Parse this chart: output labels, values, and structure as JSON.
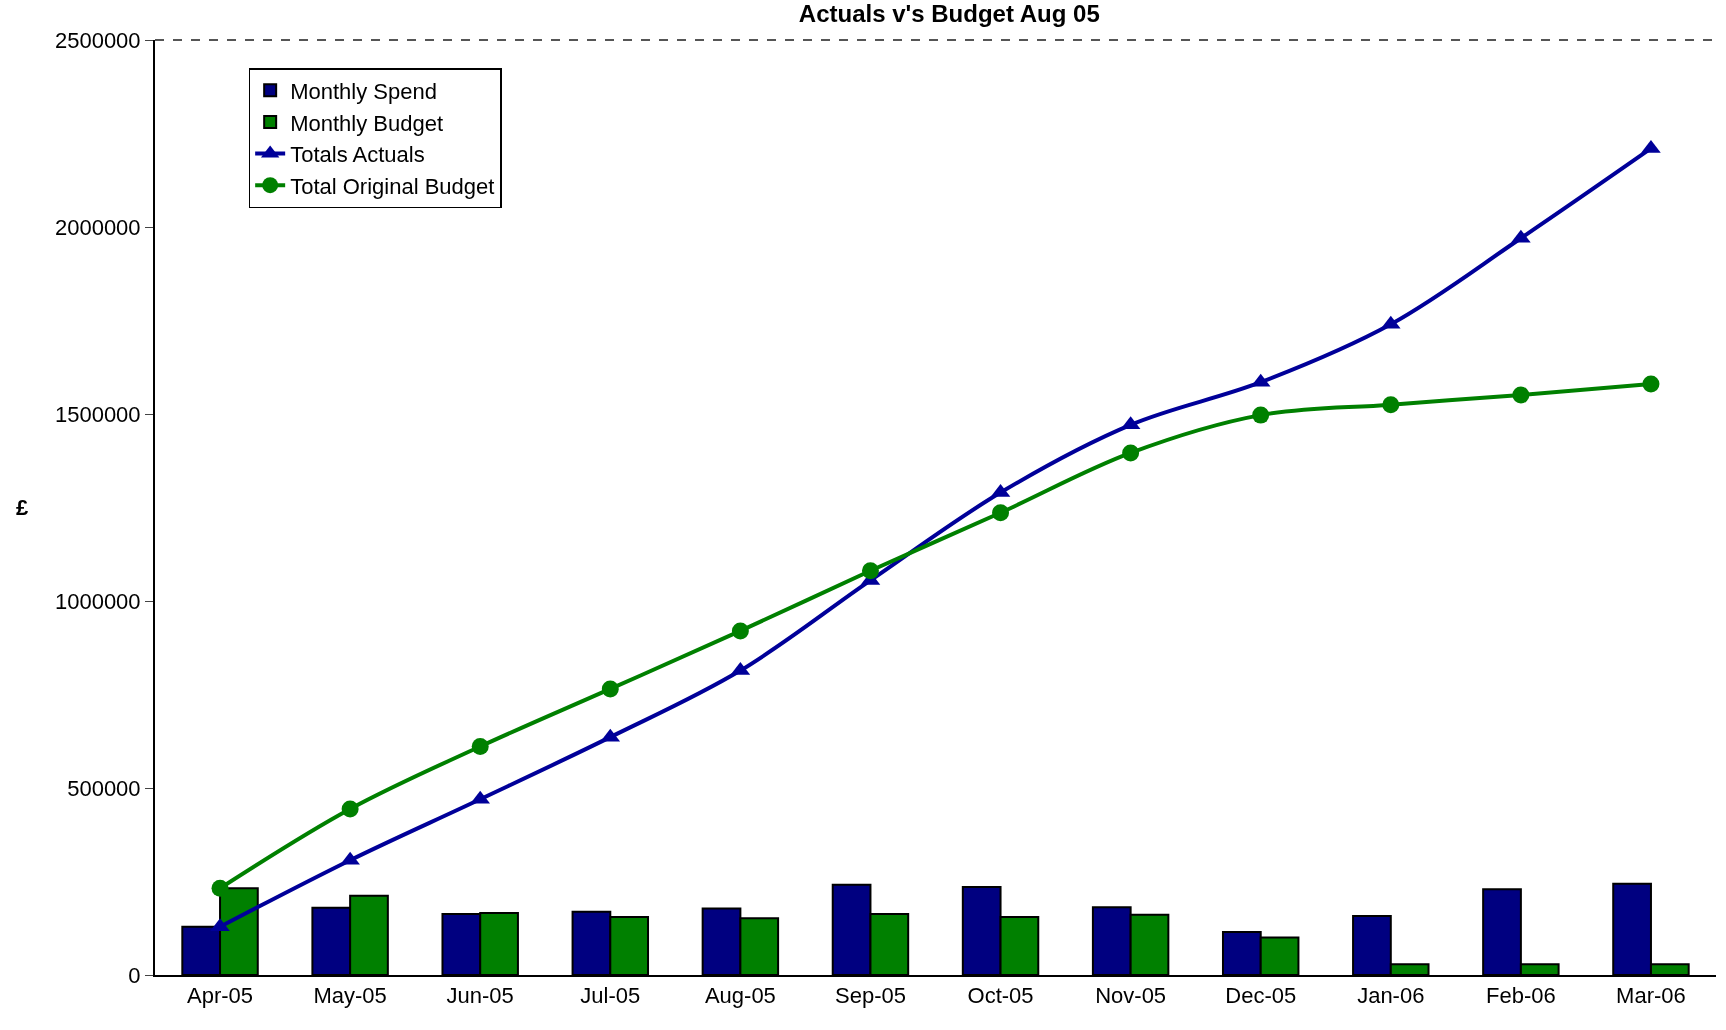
{
  "chart_data": {
    "type": "bar",
    "title": "Actuals v's Budget Aug 05",
    "ylabel": "£",
    "categories": [
      "Apr-05",
      "May-05",
      "Jun-05",
      "Jul-05",
      "Aug-05",
      "Sep-05",
      "Oct-05",
      "Nov-05",
      "Dec-05",
      "Jan-06",
      "Feb-06",
      "Mar-06"
    ],
    "series": [
      {
        "name": "Monthly Spend",
        "color": "#000080",
        "values": [
          129000,
          180000,
          163000,
          169000,
          178000,
          241000,
          235000,
          181000,
          115000,
          158000,
          229000,
          244000
        ]
      },
      {
        "name": "Monthly Budget",
        "color": "#008000",
        "values": [
          232000,
          212000,
          166000,
          155000,
          152000,
          163000,
          155000,
          161000,
          100000,
          29000,
          29000,
          29000
        ]
      },
      {
        "name": "Totals Actuals",
        "type": "line",
        "color": "#000099",
        "marker": "triangle",
        "values": [
          129000,
          307000,
          470000,
          636000,
          814000,
          1055000,
          1290000,
          1471000,
          1585000,
          1740000,
          1970000,
          2210000
        ]
      },
      {
        "name": "Total Original Budget",
        "type": "line",
        "color": "#008000",
        "marker": "circle",
        "values": [
          232000,
          444000,
          611000,
          765000,
          920000,
          1081000,
          1236000,
          1396000,
          1497000,
          1525000,
          1551000,
          1580000
        ]
      }
    ],
    "ylim": [
      0,
      2500000
    ],
    "yticks": [
      0,
      500000,
      1000000,
      1500000,
      2000000,
      2500000
    ],
    "grid": false,
    "legend": "top left"
  }
}
